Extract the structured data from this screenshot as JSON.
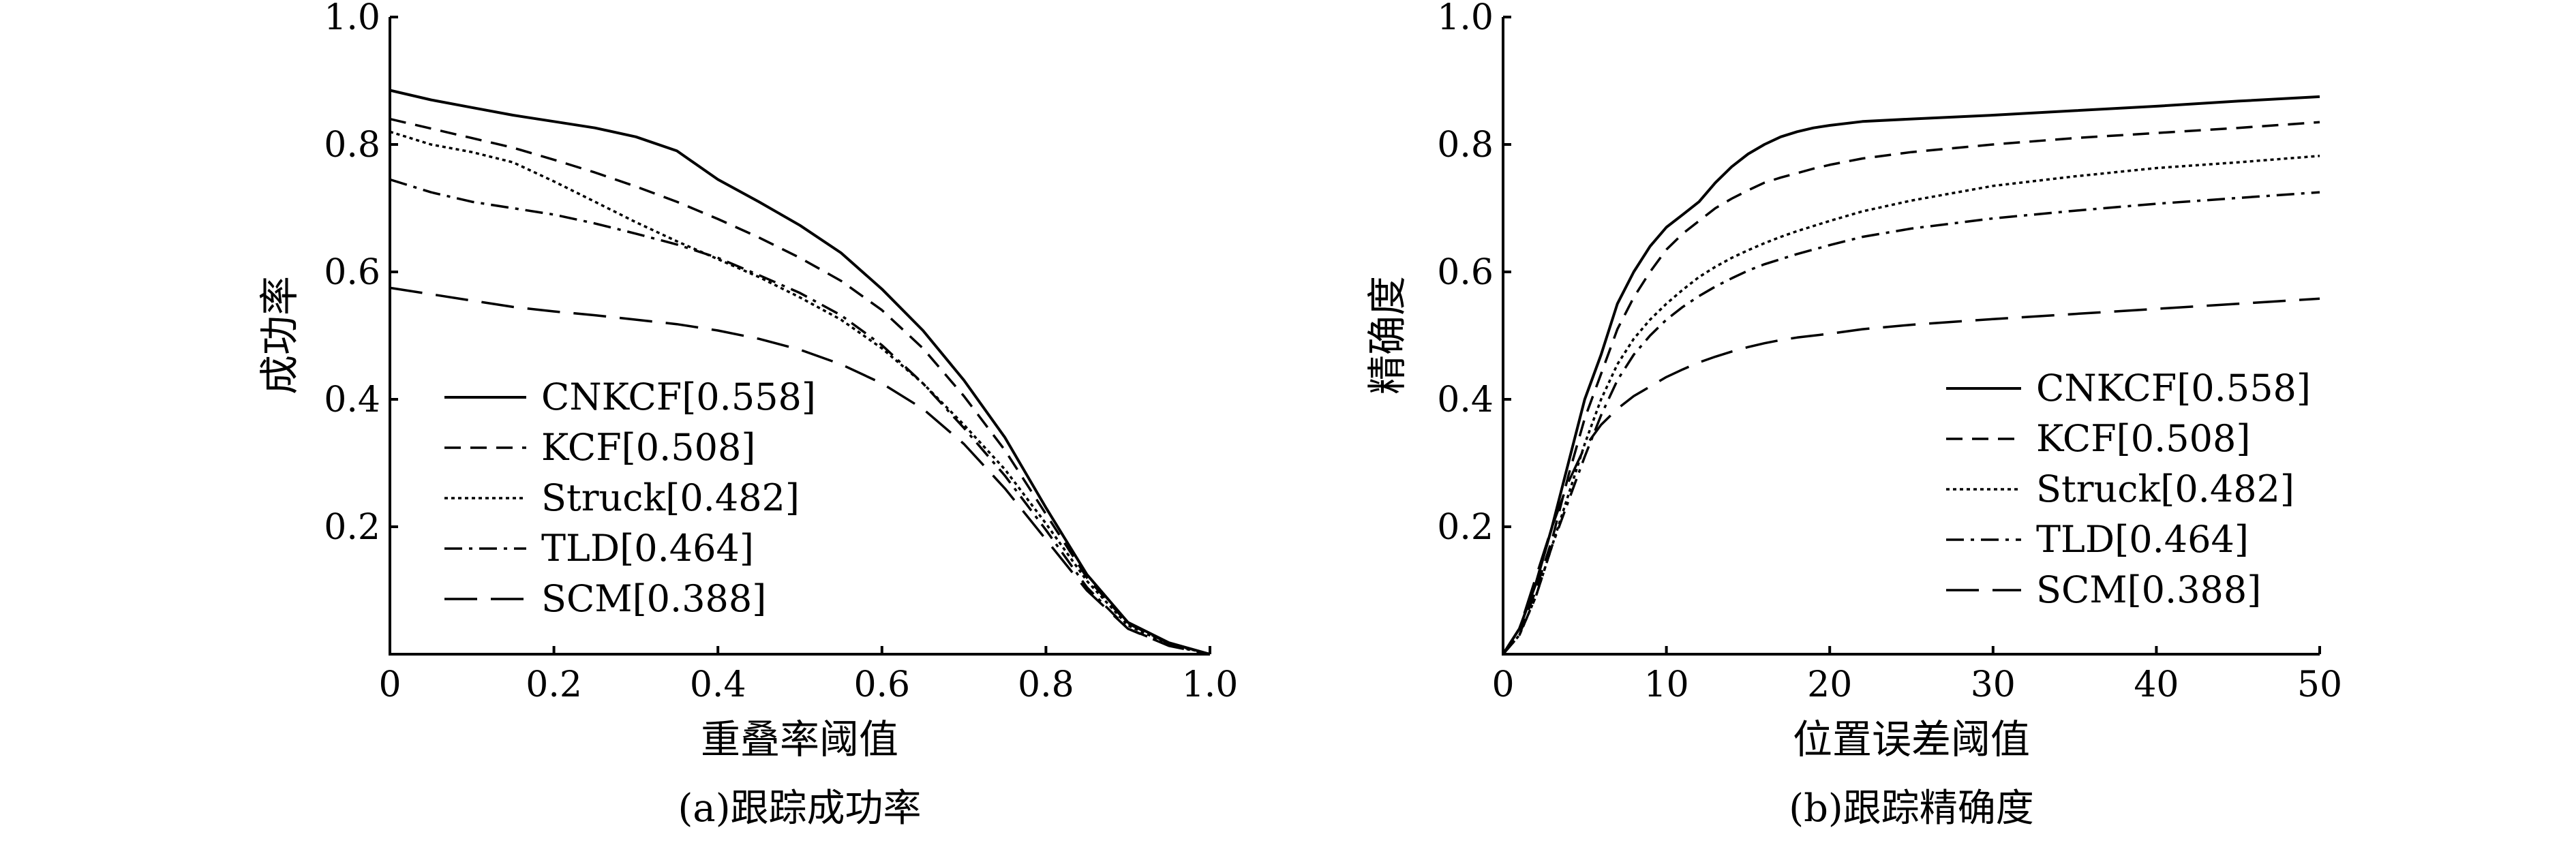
{
  "chart_data": [
    {
      "type": "line",
      "caption": "(a)跟踪成功率",
      "xlabel": "重叠率阈值",
      "ylabel": "成功率",
      "xlim": [
        0,
        1.0
      ],
      "ylim": [
        0,
        1.0
      ],
      "xticks": [
        "0",
        "0.2",
        "0.4",
        "0.6",
        "0.8",
        "1.0"
      ],
      "yticks": [
        "0.2",
        "0.4",
        "0.6",
        "0.8",
        "1.0"
      ],
      "legend_position": "lower-left",
      "series": [
        {
          "name": "CNKCF[0.558]",
          "style": "solid",
          "x": [
            0,
            0.05,
            0.1,
            0.15,
            0.2,
            0.25,
            0.3,
            0.35,
            0.4,
            0.45,
            0.5,
            0.55,
            0.6,
            0.65,
            0.7,
            0.75,
            0.8,
            0.85,
            0.9,
            0.95,
            1.0
          ],
          "y": [
            0.885,
            0.87,
            0.858,
            0.846,
            0.836,
            0.826,
            0.812,
            0.79,
            0.745,
            0.71,
            0.673,
            0.63,
            0.573,
            0.508,
            0.43,
            0.34,
            0.23,
            0.125,
            0.05,
            0.018,
            0.0
          ]
        },
        {
          "name": "KCF[0.508]",
          "style": "dashed",
          "x": [
            0,
            0.05,
            0.1,
            0.15,
            0.2,
            0.25,
            0.3,
            0.35,
            0.4,
            0.45,
            0.5,
            0.55,
            0.6,
            0.65,
            0.7,
            0.75,
            0.8,
            0.85,
            0.9,
            0.95,
            1.0
          ],
          "y": [
            0.84,
            0.825,
            0.81,
            0.795,
            0.776,
            0.756,
            0.734,
            0.71,
            0.683,
            0.654,
            0.622,
            0.586,
            0.54,
            0.48,
            0.405,
            0.32,
            0.22,
            0.12,
            0.048,
            0.017,
            0.0
          ]
        },
        {
          "name": "Struck[0.482]",
          "style": "dotted",
          "x": [
            0,
            0.05,
            0.1,
            0.15,
            0.2,
            0.25,
            0.3,
            0.35,
            0.4,
            0.45,
            0.5,
            0.55,
            0.6,
            0.65,
            0.7,
            0.75,
            0.8,
            0.85,
            0.9,
            0.95,
            1.0
          ],
          "y": [
            0.82,
            0.8,
            0.788,
            0.772,
            0.742,
            0.71,
            0.678,
            0.648,
            0.62,
            0.592,
            0.56,
            0.525,
            0.48,
            0.425,
            0.36,
            0.29,
            0.205,
            0.115,
            0.045,
            0.016,
            0.0
          ]
        },
        {
          "name": "TLD[0.464]",
          "style": "dashdot",
          "x": [
            0,
            0.05,
            0.1,
            0.15,
            0.2,
            0.25,
            0.3,
            0.35,
            0.4,
            0.45,
            0.5,
            0.55,
            0.6,
            0.65,
            0.7,
            0.75,
            0.8,
            0.85,
            0.9,
            0.95,
            1.0
          ],
          "y": [
            0.745,
            0.725,
            0.71,
            0.7,
            0.69,
            0.676,
            0.66,
            0.643,
            0.622,
            0.595,
            0.567,
            0.532,
            0.485,
            0.425,
            0.355,
            0.28,
            0.195,
            0.105,
            0.04,
            0.014,
            0.0
          ]
        },
        {
          "name": "SCM[0.388]",
          "style": "longdash",
          "x": [
            0,
            0.05,
            0.1,
            0.15,
            0.2,
            0.25,
            0.3,
            0.35,
            0.4,
            0.45,
            0.5,
            0.55,
            0.6,
            0.65,
            0.7,
            0.75,
            0.8,
            0.85,
            0.9,
            0.95,
            1.0
          ],
          "y": [
            0.575,
            0.565,
            0.555,
            0.545,
            0.538,
            0.532,
            0.525,
            0.518,
            0.508,
            0.495,
            0.478,
            0.455,
            0.425,
            0.385,
            0.33,
            0.26,
            0.18,
            0.1,
            0.04,
            0.013,
            0.0
          ]
        }
      ]
    },
    {
      "type": "line",
      "caption": "(b)跟踪精确度",
      "xlabel": "位置误差阈值",
      "ylabel": "精确度",
      "xlim": [
        0,
        50
      ],
      "ylim": [
        0,
        1.0
      ],
      "xticks": [
        "0",
        "10",
        "20",
        "30",
        "40",
        "50"
      ],
      "yticks": [
        "0.2",
        "0.4",
        "0.6",
        "0.8",
        "1.0"
      ],
      "legend_position": "lower-right",
      "series": [
        {
          "name": "CNKCF[0.558]",
          "style": "solid",
          "x": [
            0,
            1,
            2,
            3,
            4,
            5,
            6,
            7,
            8,
            9,
            10,
            11,
            12,
            13,
            14,
            15,
            16,
            17,
            18,
            19,
            20,
            22,
            25,
            30,
            35,
            40,
            45,
            50
          ],
          "y": [
            0.0,
            0.04,
            0.11,
            0.2,
            0.3,
            0.4,
            0.47,
            0.55,
            0.6,
            0.64,
            0.67,
            0.69,
            0.71,
            0.74,
            0.765,
            0.785,
            0.8,
            0.812,
            0.82,
            0.826,
            0.83,
            0.836,
            0.84,
            0.846,
            0.853,
            0.86,
            0.868,
            0.875
          ]
        },
        {
          "name": "KCF[0.508]",
          "style": "dashed",
          "x": [
            0,
            1,
            2,
            3,
            4,
            5,
            6,
            7,
            8,
            9,
            10,
            11,
            12,
            13,
            14,
            15,
            16,
            17,
            18,
            19,
            20,
            22,
            25,
            30,
            35,
            40,
            45,
            50
          ],
          "y": [
            0.0,
            0.03,
            0.1,
            0.18,
            0.28,
            0.37,
            0.44,
            0.51,
            0.56,
            0.6,
            0.635,
            0.66,
            0.68,
            0.7,
            0.715,
            0.728,
            0.74,
            0.748,
            0.755,
            0.762,
            0.768,
            0.778,
            0.788,
            0.8,
            0.81,
            0.818,
            0.826,
            0.835
          ]
        },
        {
          "name": "Struck[0.482]",
          "style": "dotted",
          "x": [
            0,
            1,
            2,
            3,
            4,
            5,
            6,
            7,
            8,
            9,
            10,
            11,
            12,
            13,
            14,
            15,
            16,
            17,
            18,
            19,
            20,
            22,
            25,
            30,
            35,
            40,
            45,
            50
          ],
          "y": [
            0.0,
            0.03,
            0.09,
            0.17,
            0.25,
            0.33,
            0.4,
            0.455,
            0.495,
            0.525,
            0.55,
            0.572,
            0.592,
            0.608,
            0.622,
            0.634,
            0.645,
            0.655,
            0.664,
            0.672,
            0.68,
            0.695,
            0.712,
            0.735,
            0.75,
            0.763,
            0.772,
            0.782
          ]
        },
        {
          "name": "TLD[0.464]",
          "style": "dashdot",
          "x": [
            0,
            1,
            2,
            3,
            4,
            5,
            6,
            7,
            8,
            9,
            10,
            11,
            12,
            13,
            14,
            15,
            16,
            17,
            18,
            19,
            20,
            22,
            25,
            30,
            35,
            40,
            45,
            50
          ],
          "y": [
            0.0,
            0.03,
            0.09,
            0.17,
            0.24,
            0.31,
            0.375,
            0.43,
            0.47,
            0.5,
            0.525,
            0.545,
            0.562,
            0.577,
            0.59,
            0.602,
            0.612,
            0.62,
            0.628,
            0.635,
            0.642,
            0.655,
            0.668,
            0.684,
            0.696,
            0.707,
            0.716,
            0.725
          ]
        },
        {
          "name": "SCM[0.388]",
          "style": "longdash",
          "x": [
            0,
            1,
            2,
            3,
            4,
            5,
            6,
            7,
            8,
            9,
            10,
            11,
            12,
            13,
            14,
            15,
            16,
            17,
            18,
            19,
            20,
            22,
            25,
            30,
            35,
            40,
            45,
            50
          ],
          "y": [
            0.0,
            0.04,
            0.12,
            0.2,
            0.27,
            0.325,
            0.36,
            0.385,
            0.405,
            0.42,
            0.435,
            0.447,
            0.458,
            0.467,
            0.475,
            0.482,
            0.488,
            0.493,
            0.497,
            0.5,
            0.503,
            0.51,
            0.517,
            0.526,
            0.534,
            0.542,
            0.55,
            0.558
          ]
        }
      ]
    }
  ]
}
